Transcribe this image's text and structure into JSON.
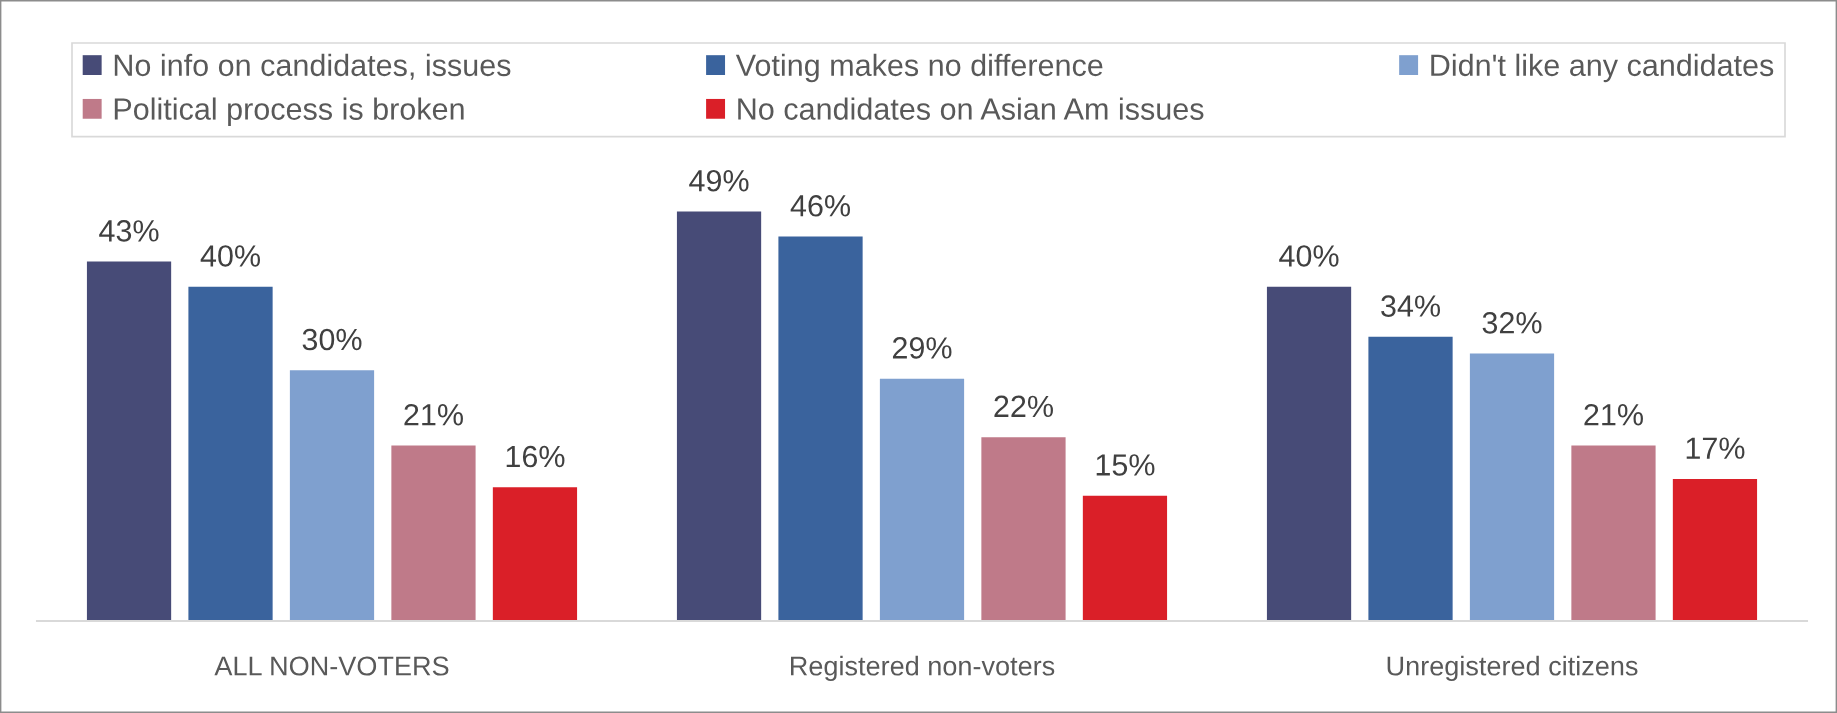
{
  "chart_data": {
    "type": "bar",
    "categories": [
      "ALL NON-VOTERS",
      "Registered non-voters",
      "Unregistered citizens"
    ],
    "series": [
      {
        "name": "No info on candidates, issues",
        "color": "#474b77",
        "values": [
          43,
          49,
          40
        ],
        "value_labels": [
          "43%",
          "49%",
          "40%"
        ]
      },
      {
        "name": "Voting makes no difference",
        "color": "#3a639d",
        "values": [
          40,
          46,
          34
        ],
        "value_labels": [
          "40%",
          "46%",
          "34%"
        ]
      },
      {
        "name": "Didn't like any candidates",
        "color": "#7fa0cf",
        "values": [
          30,
          29,
          32
        ],
        "value_labels": [
          "30%",
          "29%",
          "32%"
        ]
      },
      {
        "name": "Political process is broken",
        "color": "#bf7a89",
        "values": [
          21,
          22,
          21
        ],
        "value_labels": [
          "21%",
          "22%",
          "21%"
        ]
      },
      {
        "name": "No candidates on Asian Am issues",
        "color": "#da1f28",
        "values": [
          16,
          15,
          17
        ],
        "value_labels": [
          "16%",
          "15%",
          "17%"
        ]
      }
    ],
    "tick_labels": "x",
    "legend": "top",
    "grid": false
  }
}
